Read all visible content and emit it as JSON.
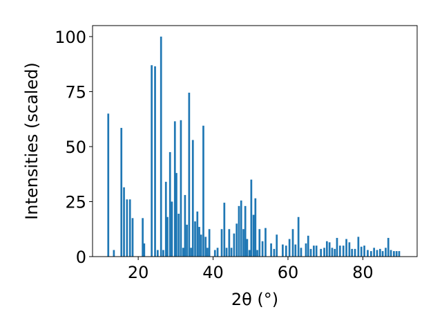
{
  "chart_data": {
    "type": "bar",
    "xlabel": "2θ (°)",
    "ylabel": "Intensities (scaled)",
    "xlim": [
      7.8,
      94.5
    ],
    "ylim": [
      0,
      105
    ],
    "xticks": [
      20,
      40,
      60,
      80
    ],
    "yticks": [
      0,
      25,
      50,
      75,
      100
    ],
    "grid": false,
    "color": "#1f77b4",
    "bar_width": 0.5,
    "x": [
      12.0,
      13.5,
      15.5,
      16.2,
      17.0,
      17.8,
      18.5,
      21.2,
      21.6,
      23.6,
      24.5,
      25.2,
      26.1,
      26.7,
      27.4,
      27.8,
      28.5,
      29.0,
      29.8,
      30.2,
      30.8,
      31.4,
      32.0,
      32.5,
      33.0,
      33.6,
      34.1,
      34.6,
      35.2,
      35.8,
      36.3,
      36.8,
      37.4,
      38.0,
      38.5,
      39.0,
      40.5,
      41.2,
      42.3,
      43.0,
      43.6,
      44.3,
      44.9,
      45.6,
      46.3,
      46.9,
      47.5,
      48.1,
      48.6,
      49.1,
      49.7,
      50.2,
      50.8,
      51.3,
      51.8,
      52.4,
      53.2,
      54.0,
      55.5,
      56.3,
      57.0,
      58.6,
      59.5,
      60.4,
      61.3,
      62.0,
      62.8,
      63.5,
      64.8,
      65.4,
      66.1,
      66.9,
      67.6,
      68.8,
      69.7,
      70.4,
      71.1,
      71.8,
      72.5,
      73.1,
      73.9,
      74.8,
      75.6,
      76.4,
      77.1,
      77.9,
      78.8,
      79.6,
      80.4,
      81.3,
      82.2,
      83.0,
      83.8,
      84.6,
      85.3,
      86.1,
      86.8,
      87.5,
      88.3,
      89.0,
      89.7
    ],
    "values": [
      65,
      3,
      58.5,
      31.5,
      26,
      26,
      17.5,
      17.5,
      6,
      87,
      86.5,
      3,
      100,
      3,
      34,
      18,
      47.5,
      25,
      61.5,
      38,
      19.5,
      62,
      4,
      28,
      14.5,
      74.5,
      4,
      53,
      16,
      20.5,
      13.5,
      10,
      59.5,
      9,
      4,
      12.5,
      3,
      4,
      12.5,
      24.5,
      4,
      12.5,
      4,
      10.5,
      15,
      23,
      25.5,
      12.5,
      23,
      8,
      3,
      35,
      19,
      26.5,
      3,
      12.5,
      7,
      13,
      6,
      3.5,
      10,
      5.5,
      5,
      8,
      12.5,
      5.5,
      18,
      4,
      6,
      9.5,
      3.5,
      5,
      5,
      3.5,
      4,
      7,
      6.5,
      4,
      3.5,
      8.5,
      5,
      5,
      8,
      6.5,
      3.5,
      3.5,
      9,
      4.5,
      5,
      3,
      2.5,
      4,
      3,
      3.5,
      2.5,
      4,
      8.5,
      3,
      2.5,
      2.5,
      2.5
    ]
  }
}
